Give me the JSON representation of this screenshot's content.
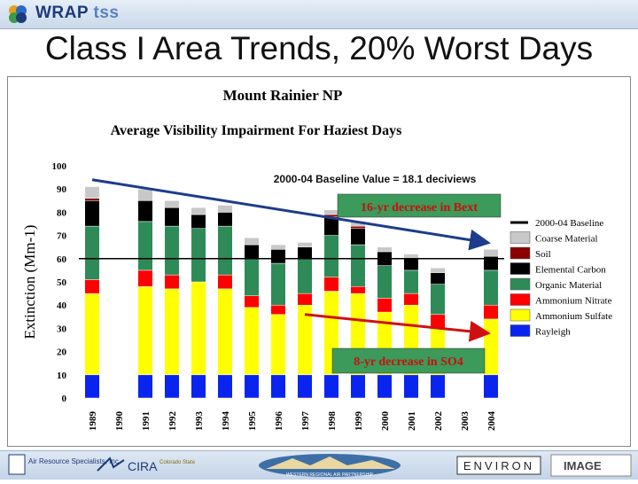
{
  "header": {
    "logo_main": "WRAP",
    "logo_sub": "tss"
  },
  "slide": {
    "title": "Class I Area Trends, 20% Worst Days"
  },
  "footer": {
    "logos": [
      "Air Resource Specialists, Inc.",
      "CIRA",
      "Colorado State",
      "WESTERN REGIONAL AIR PARTNERSHIP",
      "ENVIRON",
      "IMAGE"
    ]
  },
  "colors": {
    "Rayleigh": "#0a24f0",
    "Ammonium Sulfate": "#ffff00",
    "Ammonium Nitrate": "#ff0000",
    "Organic Material": "#2e8b57",
    "Elemental Carbon": "#000000",
    "Soil": "#8b0000",
    "Coarse Material": "#c8c8c8",
    "arrow": "#1e3c8c",
    "arrow2": "#d01010",
    "callout_bg": "#3c9a5a",
    "callout_text": "#c81010"
  },
  "chart_data": {
    "type": "bar",
    "stacked": true,
    "title": "Mount Rainier NP",
    "subtitle": "Average Visibility Impairment For Haziest Days",
    "ylabel": "Extinction (Mm-1)",
    "ylim": [
      0,
      100
    ],
    "yticks": [
      0,
      10,
      20,
      30,
      40,
      50,
      60,
      70,
      80,
      90,
      100
    ],
    "categories": [
      "1989",
      "1990",
      "1991",
      "1992",
      "1993",
      "1994",
      "1995",
      "1996",
      "1997",
      "1998",
      "1999",
      "2000",
      "2001",
      "2002",
      "2003",
      "2004"
    ],
    "series": [
      {
        "name": "Rayleigh",
        "values": [
          10,
          null,
          10,
          10,
          10,
          10,
          10,
          10,
          10,
          10,
          10,
          10,
          10,
          10,
          null,
          10
        ]
      },
      {
        "name": "Ammonium Sulfate",
        "values": [
          35,
          null,
          38,
          37,
          40,
          37,
          29,
          26,
          30,
          36,
          35,
          27,
          30,
          20,
          null,
          24
        ]
      },
      {
        "name": "Ammonium Nitrate",
        "values": [
          6,
          null,
          7,
          6,
          0,
          6,
          5,
          4,
          5,
          6,
          3,
          6,
          5,
          6,
          null,
          6
        ]
      },
      {
        "name": "Organic Material",
        "values": [
          23,
          null,
          21,
          21,
          23,
          21,
          16,
          18,
          15,
          18,
          18,
          14,
          10,
          13,
          null,
          15
        ]
      },
      {
        "name": "Elemental Carbon",
        "values": [
          11,
          null,
          9,
          8,
          6,
          6,
          6,
          6,
          5,
          8,
          7,
          6,
          5,
          5,
          null,
          6
        ]
      },
      {
        "name": "Soil",
        "values": [
          1,
          null,
          0,
          0,
          0,
          0,
          0,
          0,
          0,
          1,
          1,
          0,
          0,
          0,
          null,
          0
        ]
      },
      {
        "name": "Coarse Material",
        "values": [
          5,
          null,
          5,
          3,
          3,
          3,
          3,
          2,
          2,
          2,
          2,
          2,
          2,
          2,
          null,
          3
        ]
      }
    ],
    "legend": [
      "2000-04 Baseline",
      "Coarse Material",
      "Soil",
      "Elemental Carbon",
      "Organic Material",
      "Ammonium Nitrate",
      "Ammonium Sulfate",
      "Rayleigh"
    ],
    "legend_position": "right",
    "baseline": {
      "label": "2000-04 Baseline",
      "value": 60.0
    },
    "baseline_annotation": "2000-04 Baseline Value = 18.1 deciviews",
    "annotations": [
      {
        "text": "16-yr decrease in Bext",
        "from": [
          "1989",
          94
        ],
        "to": [
          "2004",
          67
        ]
      },
      {
        "text": "8-yr decrease in SO4",
        "from": [
          "1997",
          36
        ],
        "to": [
          "2004",
          28
        ]
      }
    ]
  }
}
